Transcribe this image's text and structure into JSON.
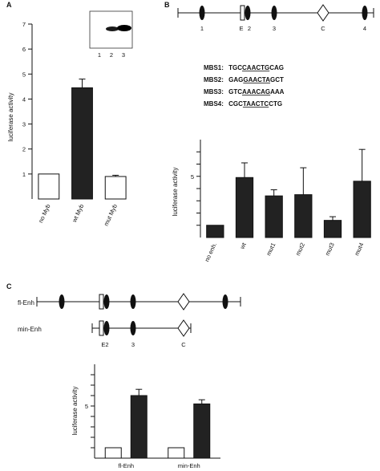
{
  "panels": {
    "a": "A",
    "b": "B",
    "c": "C"
  },
  "chart_data": [
    {
      "panel": "A",
      "type": "bar",
      "ylabel": "luciferase activity",
      "categories": [
        "no Myb",
        "wt Myb",
        "mut Myb"
      ],
      "values": [
        1.0,
        4.45,
        0.9
      ],
      "errors": [
        0,
        0.35,
        0.05
      ],
      "fills": [
        "#ffffff",
        "#222222",
        "#ffffff"
      ],
      "ylim": [
        0,
        7
      ],
      "yticks": [
        1,
        2,
        3,
        4,
        5,
        6,
        7
      ],
      "inset_lanes": [
        "1",
        "2",
        "3"
      ]
    },
    {
      "panel": "B",
      "type": "bar",
      "ylabel": "luciferase activity",
      "categories": [
        "no enh.",
        "wt",
        "mut1",
        "mut2",
        "mut3",
        "mut4"
      ],
      "values": [
        1.0,
        4.9,
        3.4,
        3.5,
        1.4,
        4.6
      ],
      "errors": [
        0,
        1.2,
        0.5,
        2.2,
        0.3,
        2.6
      ],
      "fills": [
        "#222222",
        "#222222",
        "#222222",
        "#222222",
        "#222222",
        "#222222"
      ],
      "ylim": [
        0,
        8
      ],
      "ytick_labels": [
        {
          "v": 5,
          "t": "5"
        }
      ]
    },
    {
      "panel": "C",
      "type": "bar",
      "ylabel": "luciferase activity",
      "categories": [
        "fl-Enh",
        "min-Enh"
      ],
      "series": [
        {
          "values": [
            1.0,
            1.0
          ],
          "errors": [
            0,
            0
          ],
          "fill": "#ffffff"
        },
        {
          "values": [
            6.0,
            5.2
          ],
          "errors": [
            0.6,
            0.4
          ],
          "fill": "#222222"
        }
      ],
      "ylim": [
        0,
        9
      ],
      "ytick_labels": [
        {
          "v": 5,
          "t": "5"
        }
      ]
    }
  ],
  "diagram_b": {
    "sites": [
      "1",
      "E",
      "2",
      "3",
      "C",
      "4"
    ]
  },
  "sequences": [
    {
      "name": "MBS1:",
      "pre": "TGC",
      "core": "CAACTG",
      "post": "CAG"
    },
    {
      "name": "MBS2:",
      "pre": "GAG",
      "core": "GAACTA",
      "post": "GCT"
    },
    {
      "name": "MBS3:",
      "pre": "GTC",
      "core": "AAACAG",
      "post": "AAA"
    },
    {
      "name": "MBS4:",
      "pre": "CGC",
      "core": "TAACTC",
      "post": "CTG"
    }
  ],
  "diagram_c": {
    "row_labels": [
      "fl-Enh",
      "min-Enh"
    ],
    "site_labels": [
      "E2",
      "3",
      "C"
    ]
  }
}
